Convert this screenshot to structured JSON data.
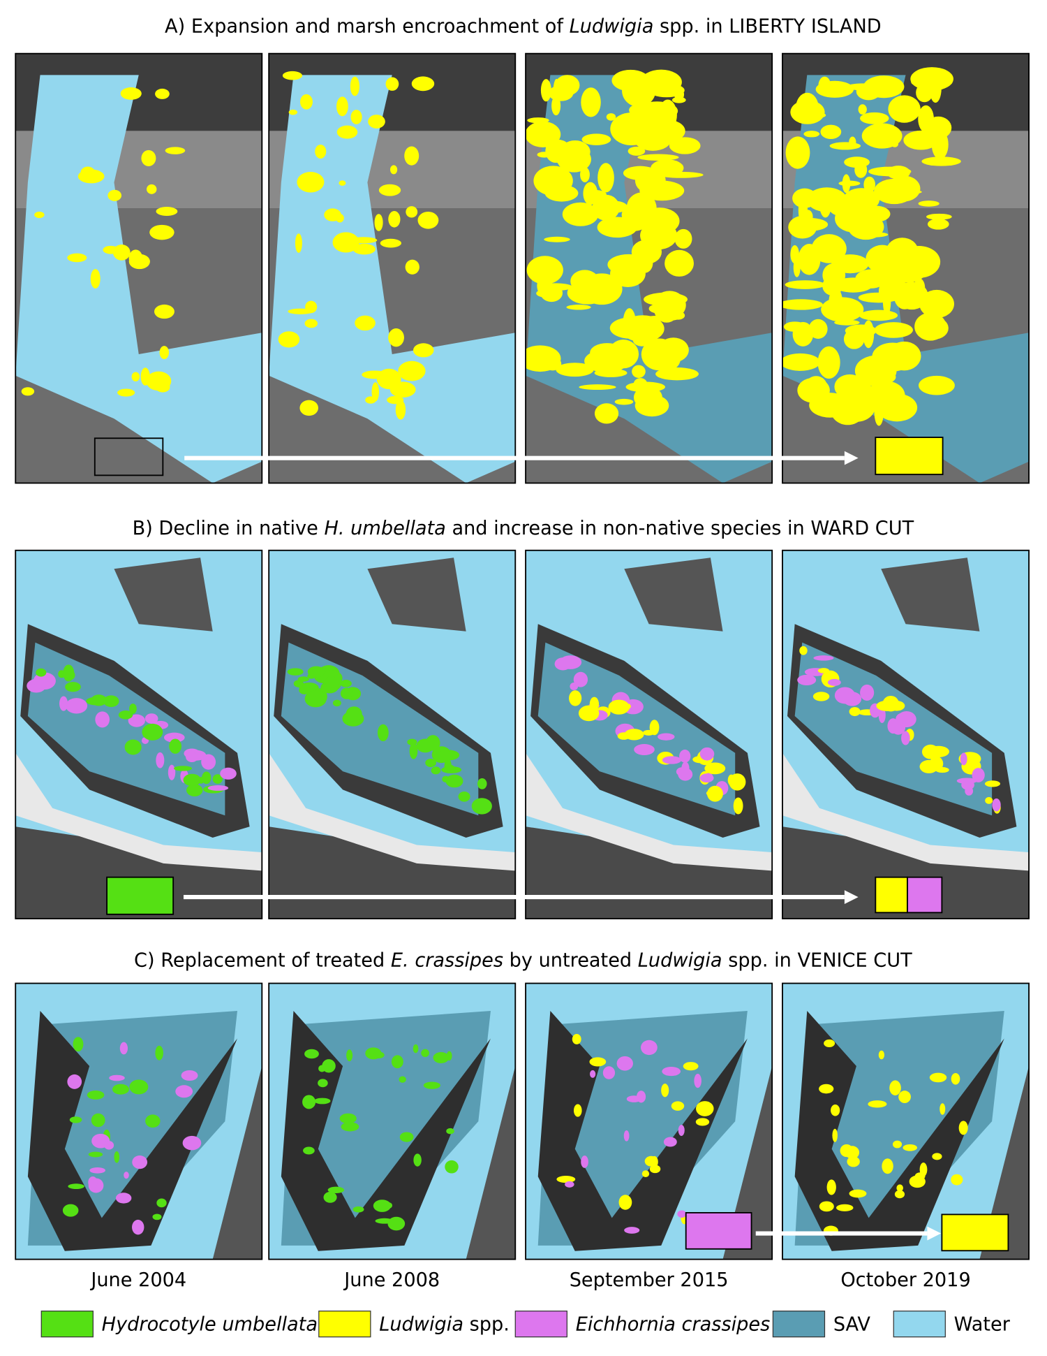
{
  "panels": [
    {
      "title": [
        {
          "text": "A) Expansion and marsh encroachment of "
        },
        {
          "text": "Ludwigia",
          "italic": true
        },
        {
          "text": " spp. in LIBERTY ISLAND"
        }
      ]
    },
    {
      "title": [
        {
          "text": "B) Decline in native "
        },
        {
          "text": "H. umbellata",
          "italic": true
        },
        {
          "text": " and increase in non-native species in WARD CUT"
        }
      ]
    },
    {
      "title": [
        {
          "text": "C) Replacement of treated "
        },
        {
          "text": "E. crassipes",
          "italic": true
        },
        {
          "text": " by untreated "
        },
        {
          "text": "Ludwigia",
          "italic": true
        },
        {
          "text": " spp. in VENICE CUT"
        }
      ]
    }
  ],
  "columns": [
    "June 2004",
    "June 2008",
    "September 2015",
    "October 2019"
  ],
  "legend": [
    {
      "parts": [
        {
          "text": "Hydrocotyle umbellata",
          "italic": true
        }
      ],
      "color": "#55e014"
    },
    {
      "parts": [
        {
          "text": "Ludwigia",
          "italic": true
        },
        {
          "text": " spp."
        }
      ],
      "color": "#ffff00"
    },
    {
      "parts": [
        {
          "text": "Eichhornia crassipes",
          "italic": true
        }
      ],
      "color": "#dd77ee"
    },
    {
      "parts": [
        {
          "text": "SAV"
        }
      ],
      "color": "#5a9db3"
    },
    {
      "parts": [
        {
          "text": "Water"
        }
      ],
      "color": "#93d7ee"
    }
  ]
}
